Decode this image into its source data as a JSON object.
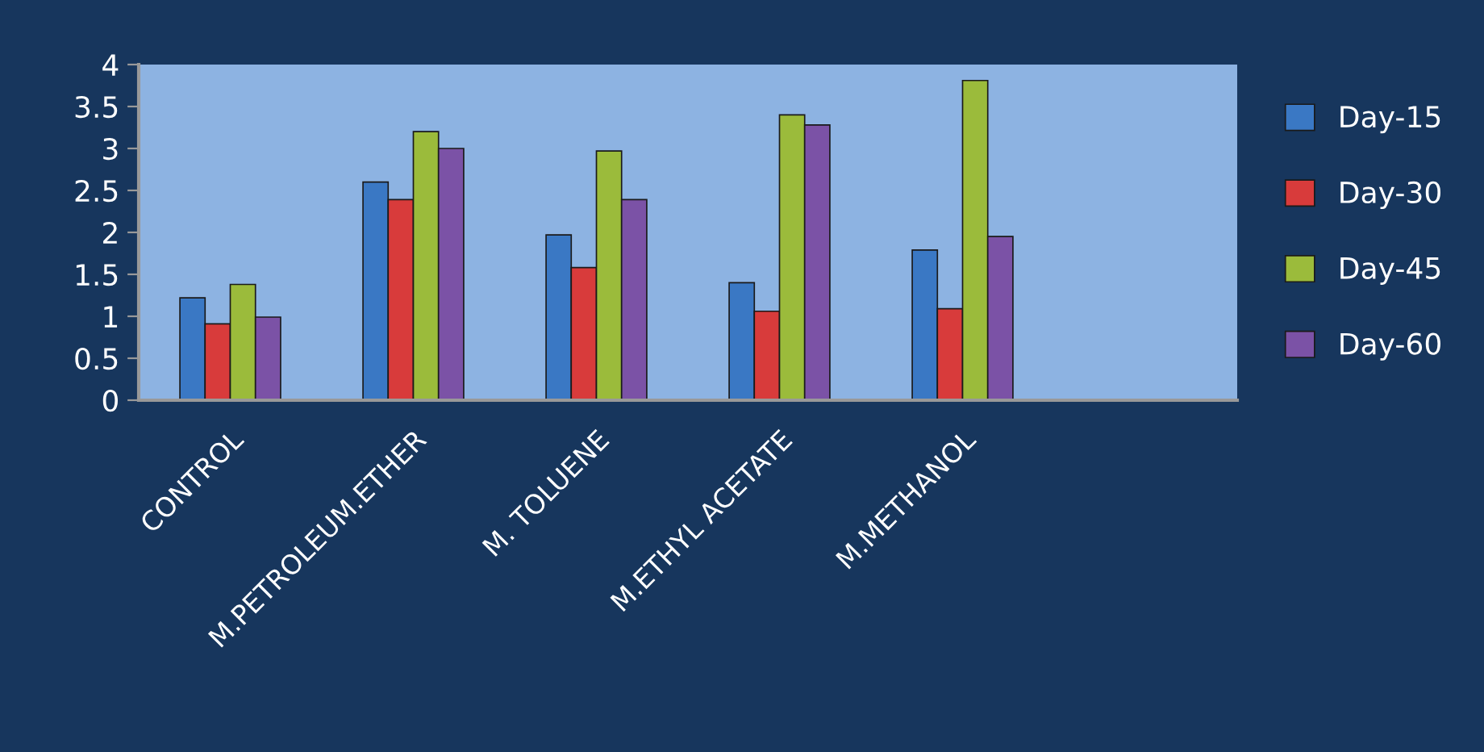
{
  "chart_data": {
    "type": "bar",
    "categories": [
      "CONTROL",
      "M.PETROLEUM.ETHER",
      "M. TOLUENE",
      "M.ETHYL ACETATE",
      "M.METHANOL",
      null
    ],
    "series": [
      {
        "name": "Day-15",
        "color": "#3a78c4",
        "values": [
          1.22,
          2.6,
          1.97,
          1.4,
          1.79,
          null
        ]
      },
      {
        "name": "Day-30",
        "color": "#d83b3b",
        "values": [
          0.91,
          2.39,
          1.58,
          1.06,
          1.09,
          null
        ]
      },
      {
        "name": "Day-45",
        "color": "#9bbb3b",
        "values": [
          1.38,
          3.2,
          2.97,
          3.4,
          3.81,
          null
        ]
      },
      {
        "name": "Day-60",
        "color": "#7b52a6",
        "values": [
          0.99,
          3.0,
          2.39,
          3.28,
          1.95,
          null
        ]
      }
    ],
    "ylim": [
      0,
      4
    ],
    "yticks": [
      0,
      0.5,
      1,
      1.5,
      2,
      2.5,
      3,
      3.5,
      4
    ],
    "grid": false,
    "legend": "right"
  }
}
